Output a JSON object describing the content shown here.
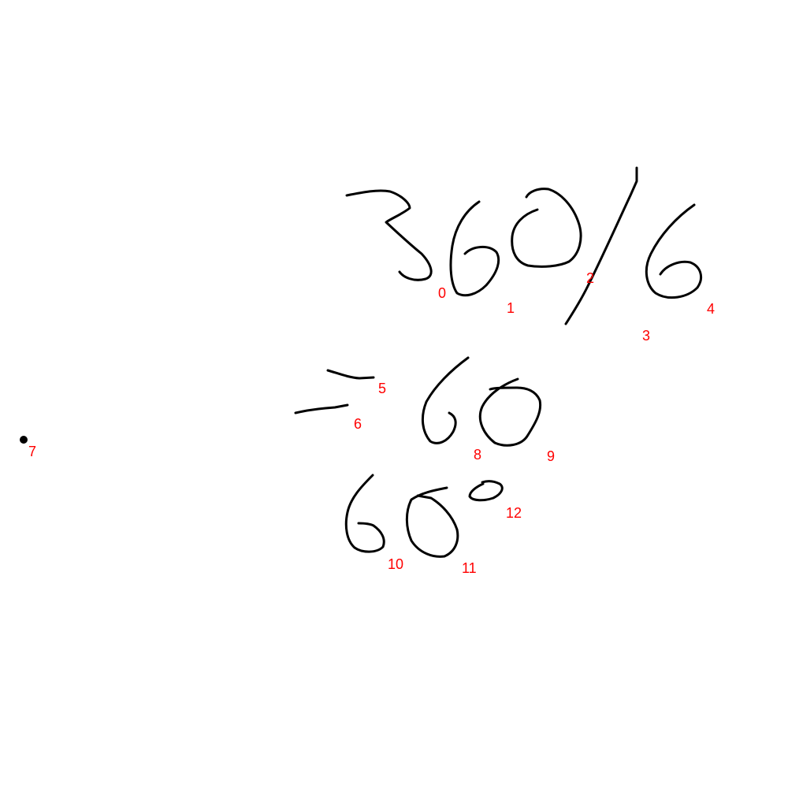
{
  "canvas": {
    "background": "#ffffff",
    "ink_color": "#000000",
    "label_color": "#ff0000"
  },
  "stroke_labels": [
    "0",
    "1",
    "2",
    "3",
    "4",
    "5",
    "6",
    "7",
    "8",
    "9",
    "10",
    "11",
    "12"
  ]
}
